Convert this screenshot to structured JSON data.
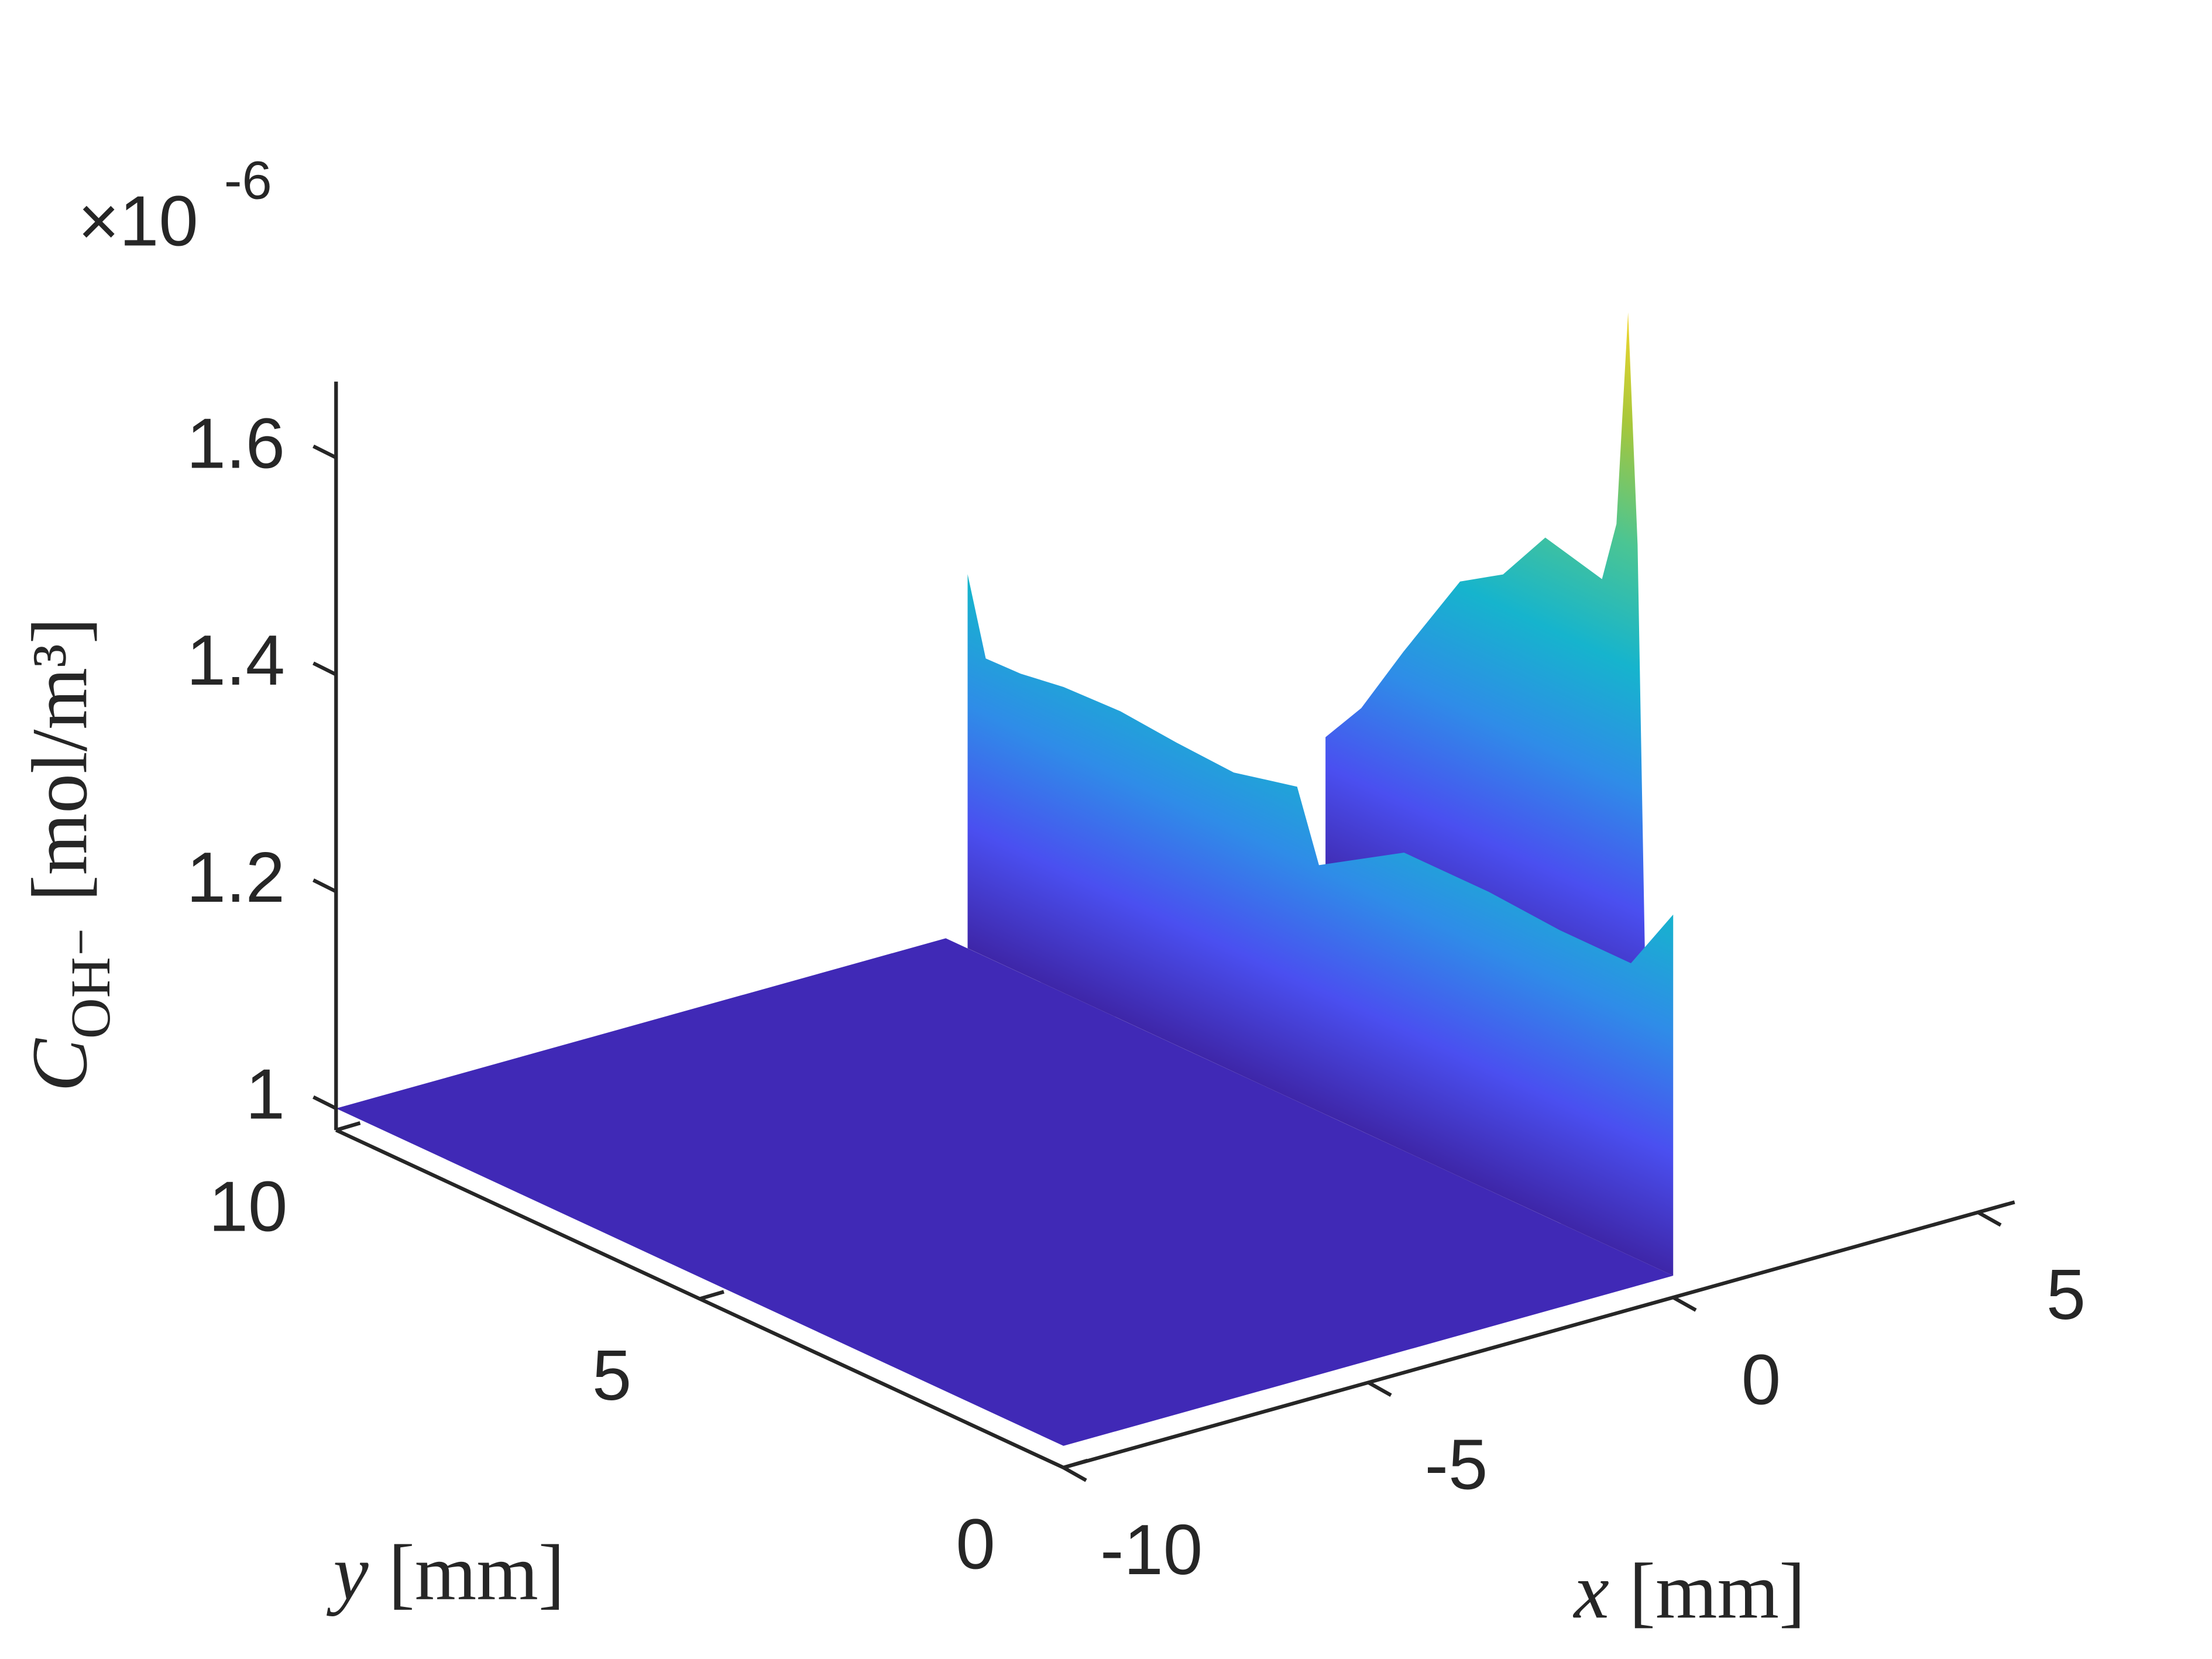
{
  "chart_data": {
    "type": "surface",
    "exponent": {
      "base": "×10",
      "power": "-6"
    },
    "xlabel": {
      "symbol": "x",
      "unit": "[mm]"
    },
    "ylabel": {
      "symbol": "y",
      "unit": "[mm]"
    },
    "zlabel": {
      "symbol": "C",
      "subscript": "OH⁻",
      "unit": "[mol/m³]"
    },
    "xlim": [
      -10,
      5.6
    ],
    "xticks": [
      -10,
      -5,
      0,
      5
    ],
    "ylim": [
      0,
      10
    ],
    "yticks": [
      0,
      5,
      10
    ],
    "zlim": [
      0.98,
      1.67
    ],
    "zticks": [
      1,
      1.2,
      1.4,
      1.6
    ],
    "floor": {
      "x": [
        -10,
        0
      ],
      "y": [
        0,
        10
      ],
      "value": 1,
      "color": "#4029b6"
    },
    "walls": [
      {
        "x": 5,
        "y": [
          8.97,
          8.48,
          7.9,
          7.12,
          6.53,
          5.95,
          5.17,
          4.97,
          4.81,
          4.68,
          4.58
        ],
        "values": [
          1.139,
          1.181,
          1.251,
          1.34,
          1.365,
          1.417,
          1.403,
          1.46,
          1.66,
          1.45,
          1.08
        ]
      },
      {
        "x": 0,
        "y": [
          9.7,
          9.45,
          8.97,
          8.38,
          7.6,
          6.82,
          6.04,
          5.17,
          4.87,
          3.7,
          2.53,
          1.56,
          0.58,
          0
        ],
        "values": [
          1.345,
          1.275,
          1.276,
          1.282,
          1.284,
          1.279,
          1.276,
          1.29,
          1.227,
          1.275,
          1.275,
          1.27,
          1.27,
          1.333
        ]
      }
    ],
    "colormap": [
      "#3e26a8",
      "#4a4ff0",
      "#2f8ce8",
      "#16b4cd",
      "#4bc593",
      "#a7c73a",
      "#f9d72b"
    ]
  }
}
